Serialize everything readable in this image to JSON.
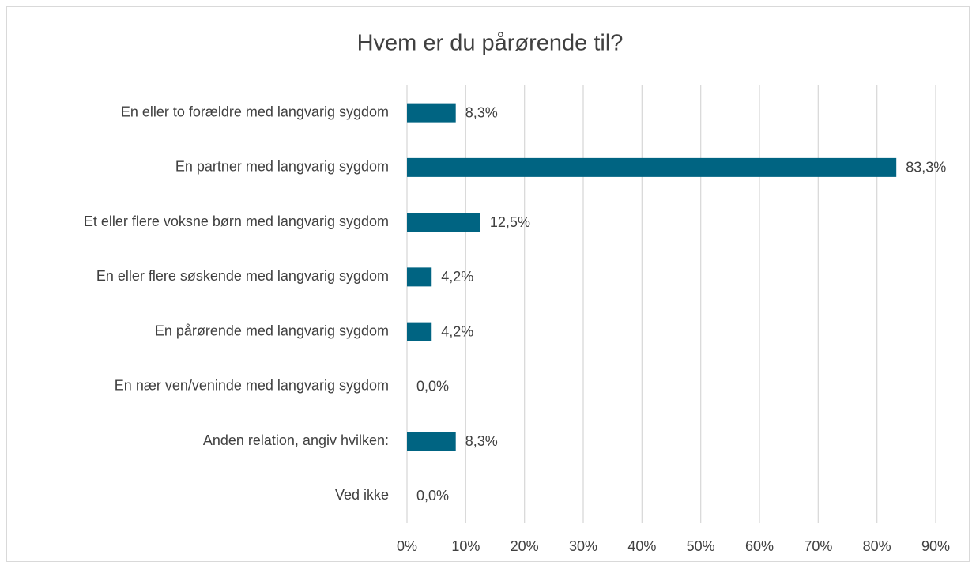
{
  "chart_data": {
    "type": "bar",
    "orientation": "horizontal",
    "title": "Hvem er du pårørende til?",
    "categories": [
      "En eller to forældre med langvarig sygdom",
      "En partner med langvarig sygdom",
      "Et eller flere voksne børn med langvarig sygdom",
      "En eller flere søskende med langvarig sygdom",
      "En pårørende med langvarig sygdom",
      "En nær ven/veninde med langvarig sygdom",
      "Anden relation, angiv hvilken:",
      "Ved ikke"
    ],
    "values": [
      8.3,
      83.3,
      12.5,
      4.2,
      4.2,
      0,
      8.3,
      0
    ],
    "value_labels": [
      "8,3%",
      "83,3%",
      "12,5%",
      "4,2%",
      "4,2%",
      "0,0%",
      "8,3%",
      "0,0%"
    ],
    "color": "#006482",
    "xlim": [
      0,
      90
    ],
    "xticks": [
      {
        "value": 0,
        "label": "0%"
      },
      {
        "value": 10,
        "label": "10%"
      },
      {
        "value": 20,
        "label": "20%"
      },
      {
        "value": 30,
        "label": "30%"
      },
      {
        "value": 40,
        "label": "40%"
      },
      {
        "value": 50,
        "label": "50%"
      },
      {
        "value": 60,
        "label": "60%"
      },
      {
        "value": 70,
        "label": "70%"
      },
      {
        "value": 80,
        "label": "80%"
      },
      {
        "value": 90,
        "label": "90%"
      }
    ],
    "grid": true
  }
}
